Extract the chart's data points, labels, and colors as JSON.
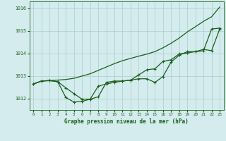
{
  "background_color": "#d4ecee",
  "grid_color": "#a8cccc",
  "line_color": "#1a5e1a",
  "title": "Graphe pression niveau de la mer (hPa)",
  "xlim": [
    -0.5,
    23.5
  ],
  "ylim": [
    1011.5,
    1016.3
  ],
  "yticks": [
    1012,
    1013,
    1014,
    1015,
    1016
  ],
  "xticks": [
    0,
    1,
    2,
    3,
    4,
    5,
    6,
    7,
    8,
    9,
    10,
    11,
    12,
    13,
    14,
    15,
    16,
    17,
    18,
    19,
    20,
    21,
    22,
    23
  ],
  "line1_x": [
    0,
    1,
    2,
    3,
    4,
    5,
    6,
    7,
    8,
    9,
    10,
    11,
    12,
    13,
    14,
    15,
    16,
    17,
    18,
    19,
    20,
    21,
    22,
    23
  ],
  "line1_y": [
    1012.65,
    1012.78,
    1012.8,
    1012.82,
    1012.85,
    1012.9,
    1013.0,
    1013.1,
    1013.25,
    1013.4,
    1013.55,
    1013.68,
    1013.78,
    1013.88,
    1013.97,
    1014.08,
    1014.25,
    1014.45,
    1014.68,
    1014.95,
    1015.18,
    1015.42,
    1015.62,
    1016.05
  ],
  "line2_x": [
    0,
    1,
    2,
    3,
    4,
    5,
    6,
    7,
    8,
    9,
    10,
    11,
    12,
    13,
    14,
    15,
    16,
    17,
    18,
    19,
    20,
    21,
    22,
    23
  ],
  "line2_y": [
    1012.65,
    1012.78,
    1012.8,
    1012.75,
    1012.05,
    1011.85,
    1011.88,
    1011.98,
    1012.55,
    1012.65,
    1012.72,
    1012.78,
    1012.82,
    1013.05,
    1013.28,
    1013.32,
    1013.65,
    1013.72,
    1013.98,
    1014.02,
    1014.08,
    1014.12,
    1015.08,
    1015.12
  ],
  "line3_x": [
    0,
    1,
    2,
    3,
    4,
    5,
    6,
    7,
    8,
    9,
    10,
    11,
    12,
    13,
    14,
    15,
    16,
    17,
    18,
    19,
    20,
    21,
    22,
    23
  ],
  "line3_y": [
    1012.65,
    1012.78,
    1012.8,
    1012.75,
    1012.48,
    1012.22,
    1011.98,
    1011.98,
    1012.08,
    1012.72,
    1012.78,
    1012.78,
    1012.82,
    1012.88,
    1012.88,
    1012.72,
    1012.98,
    1013.62,
    1013.92,
    1014.08,
    1014.08,
    1014.18,
    1014.12,
    1015.08
  ],
  "marker": "+",
  "markersize": 3.5,
  "linewidth": 0.9
}
